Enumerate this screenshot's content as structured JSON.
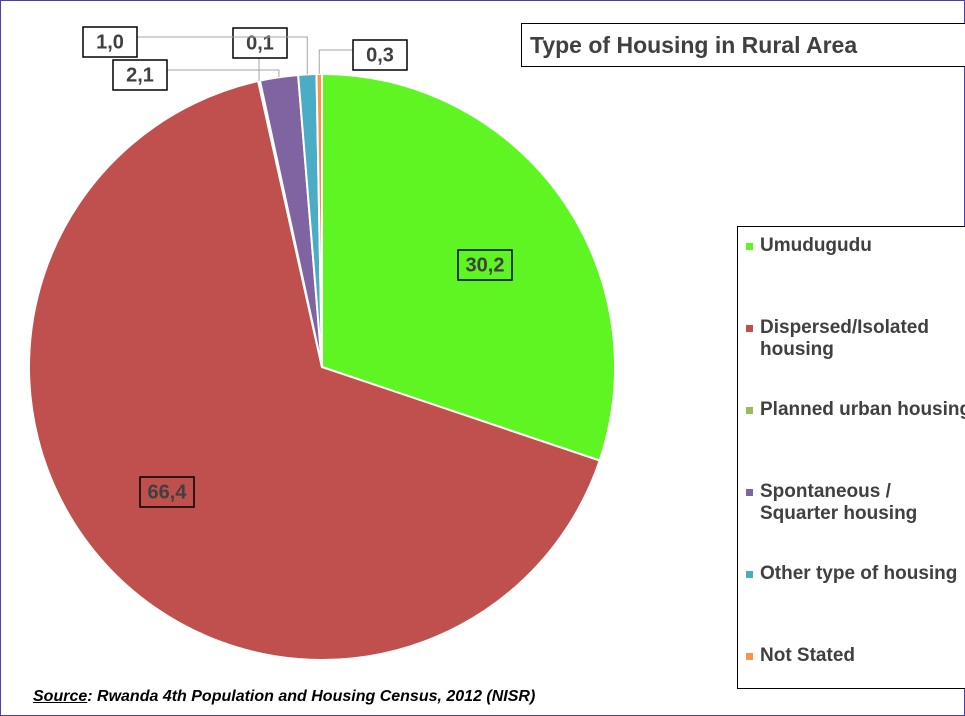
{
  "chart_data": {
    "type": "pie",
    "title": "Type of Housing in Rural Area",
    "categories": [
      "Umudugudu",
      "Dispersed/Isolated housing",
      "Planned urban housing",
      "Spontaneous / Squarter housing",
      "Other type of housing",
      "Not Stated"
    ],
    "values": [
      30.2,
      66.4,
      0.1,
      2.1,
      1.0,
      0.3
    ],
    "value_labels": [
      "30,2",
      "66,4",
      "0,1",
      "2,1",
      "1,0",
      "0,3"
    ],
    "colors": [
      "#5ef523",
      "#c0504d",
      "#9bbb59",
      "#8064a2",
      "#4bacc6",
      "#f79646"
    ],
    "source_label": "Source",
    "source_text": ": Rwanda 4th Population and Housing Census, 2012 (NISR)"
  }
}
